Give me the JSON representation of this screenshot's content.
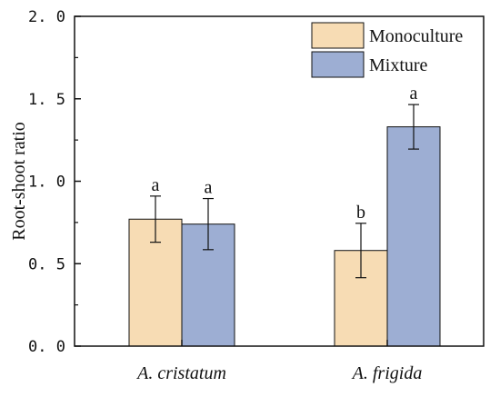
{
  "chart_data": {
    "type": "bar",
    "ylabel": "Root-shoot ratio",
    "xlabel": "",
    "ylim": [
      0,
      2.0
    ],
    "yticks": [
      "0. 0",
      "0. 5",
      "1. 0",
      "1. 5",
      "2. 0"
    ],
    "ytick_values": [
      0,
      0.5,
      1.0,
      1.5,
      2.0
    ],
    "categories": [
      "A. cristatum",
      "A. frigida"
    ],
    "legend_position": "top-right",
    "grid": false,
    "series": [
      {
        "name": "Monoculture",
        "color": "#f7dcb4",
        "values": [
          0.77,
          0.58
        ],
        "errors": [
          0.14,
          0.165
        ],
        "significance": [
          "a",
          "b"
        ]
      },
      {
        "name": "Mixture",
        "color": "#9daed3",
        "values": [
          0.74,
          1.33
        ],
        "errors": [
          0.155,
          0.135
        ],
        "significance": [
          "a",
          "a"
        ]
      }
    ]
  }
}
